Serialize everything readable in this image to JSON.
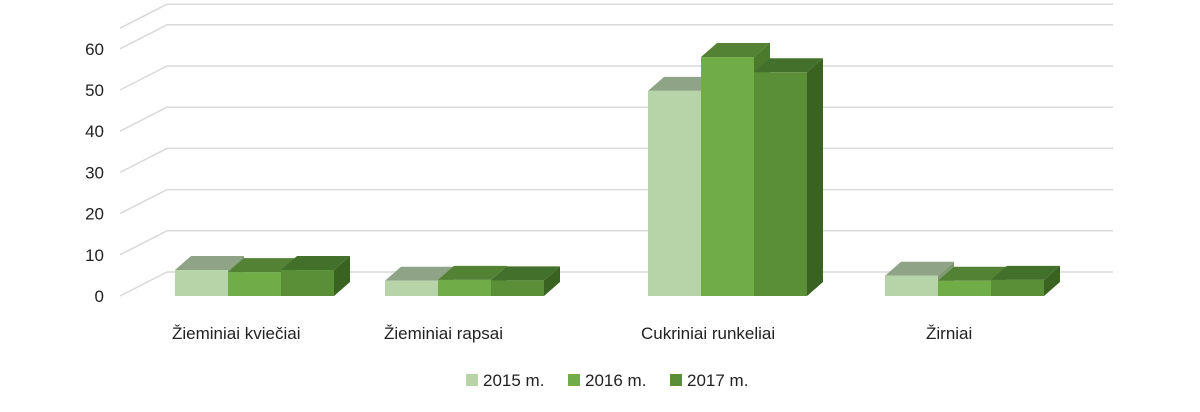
{
  "colors": {
    "gridline": "#d9d9d9",
    "series": [
      {
        "front": "#b7d4a8",
        "top": "#8fa487",
        "side": "#7f9a72"
      },
      {
        "front": "#70ad47",
        "top": "#548235",
        "side": "#4a7a2c"
      },
      {
        "front": "#5a8f37",
        "top": "#43702a",
        "side": "#3a6322"
      }
    ]
  },
  "chart_data": {
    "type": "bar",
    "categories": [
      "Žieminiai kviečiai",
      "Žieminiai rapsai",
      "Cukriniai runkeliai",
      "Žirniai"
    ],
    "series": [
      {
        "name": "2015 m.",
        "values": [
          6.3,
          3.7,
          49.8,
          4.9
        ]
      },
      {
        "name": "2016 m.",
        "values": [
          5.8,
          3.9,
          58.0,
          3.7
        ]
      },
      {
        "name": "2017 m.",
        "values": [
          6.3,
          3.8,
          54.3,
          3.9
        ]
      }
    ],
    "yticks": [
      0,
      10,
      20,
      30,
      40,
      50,
      60
    ],
    "ylim": [
      0,
      65
    ],
    "grid": true,
    "legend": "bottom"
  }
}
